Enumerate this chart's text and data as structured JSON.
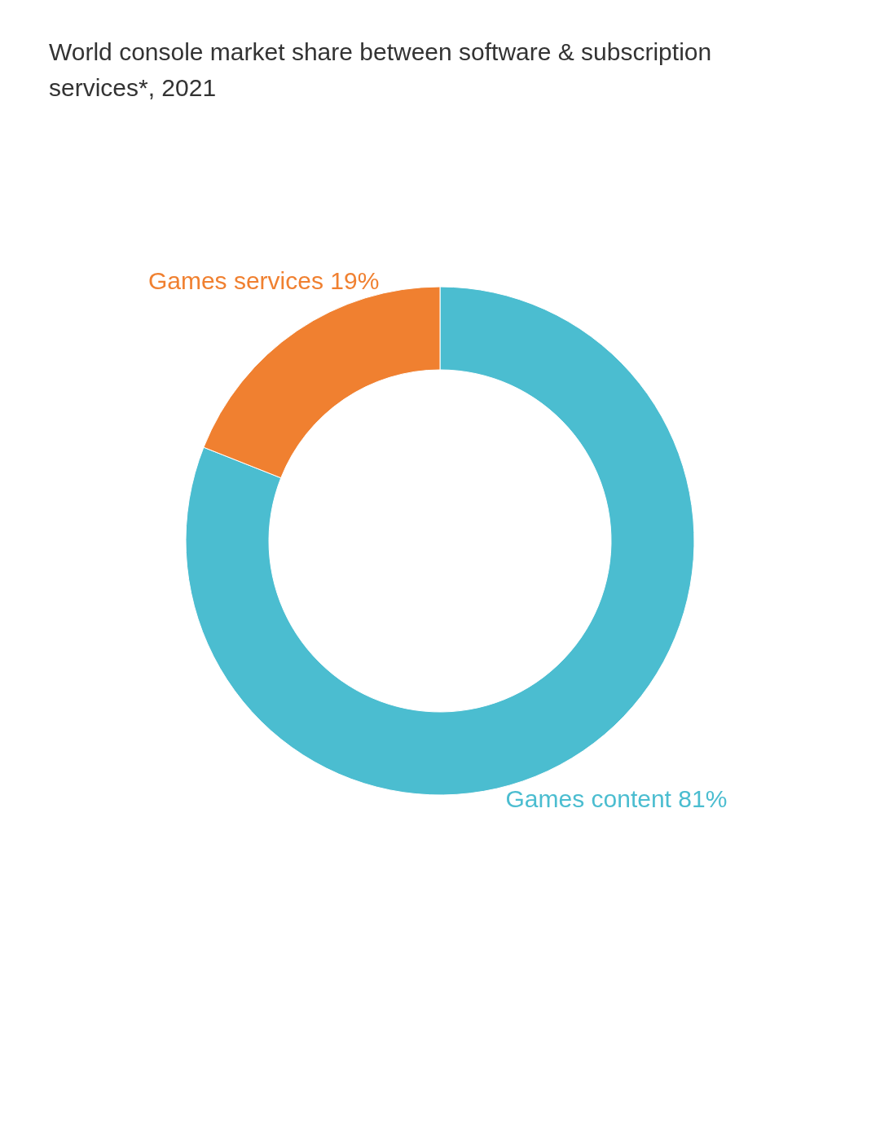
{
  "chart_data": {
    "type": "donut",
    "title": "World console market share between software & subscription services*, 2021",
    "categories": [
      "Games content",
      "Games services"
    ],
    "values": [
      81,
      19
    ],
    "colors": [
      "#4bbdd0",
      "#f08030"
    ],
    "value_labels": [
      "81%",
      "19%"
    ],
    "legend": false
  }
}
